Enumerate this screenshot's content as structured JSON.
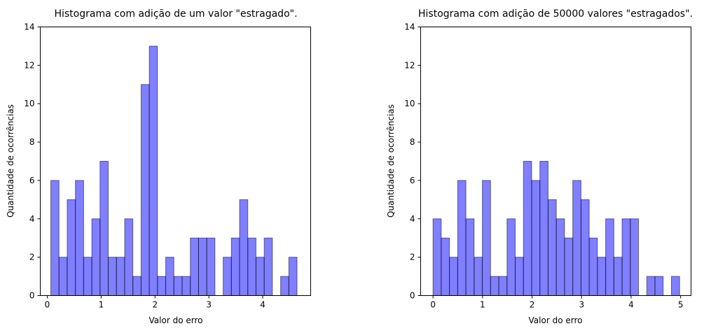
{
  "chart_data": [
    {
      "type": "bar",
      "title": "Histograma com adição de um valor \"estragado\".",
      "xlabel": "Valor do erro",
      "ylabel": "Quantidade de ocorrências",
      "xlim": [
        -0.13,
        4.89
      ],
      "ylim": [
        0,
        14
      ],
      "xticks": [
        0,
        1,
        2,
        3,
        4
      ],
      "yticks": [
        0,
        2,
        4,
        6,
        8,
        10,
        12,
        14
      ],
      "bin_start": 0.065,
      "bin_width": 0.1524,
      "values": [
        6,
        2,
        5,
        6,
        2,
        4,
        7,
        2,
        2,
        4,
        1,
        11,
        13,
        1,
        2,
        1,
        1,
        3,
        3,
        3,
        0,
        2,
        3,
        5,
        3,
        2,
        3,
        0,
        1,
        2
      ],
      "grid": false
    },
    {
      "type": "bar",
      "title": "Histograma com adição de 50000 valores \"estragados\".",
      "xlabel": "Valor do erro",
      "ylabel": "Quantidade de ocorrências",
      "xlim": [
        -0.25,
        5.21
      ],
      "ylim": [
        0,
        14
      ],
      "xticks": [
        0,
        1,
        2,
        3,
        4,
        5
      ],
      "yticks": [
        0,
        2,
        4,
        6,
        8,
        10,
        12,
        14
      ],
      "bin_start": 0.0,
      "bin_width": 0.166,
      "values": [
        4,
        3,
        2,
        6,
        4,
        2,
        6,
        1,
        1,
        4,
        2,
        7,
        6,
        7,
        5,
        4,
        3,
        6,
        5,
        3,
        2,
        4,
        2,
        4,
        4,
        0,
        1,
        1,
        0,
        1
      ],
      "grid": false
    }
  ]
}
